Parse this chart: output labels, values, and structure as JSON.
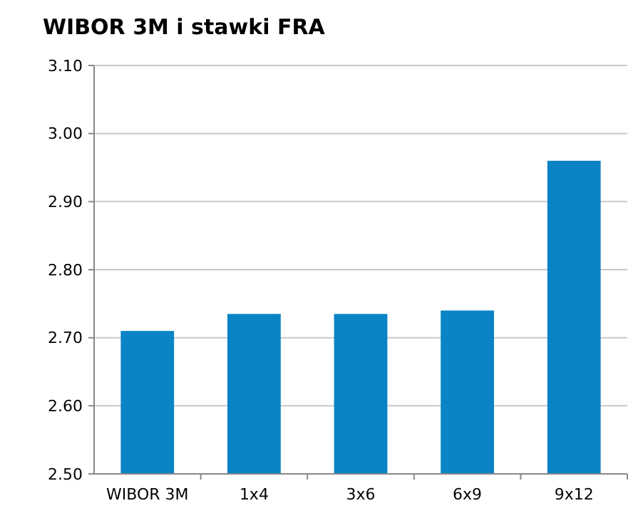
{
  "chart_data": {
    "type": "bar",
    "title": "WIBOR 3M i stawki FRA",
    "categories": [
      "WIBOR 3M",
      "1x4",
      "3x6",
      "6x9",
      "9x12"
    ],
    "values": [
      2.71,
      2.735,
      2.735,
      2.74,
      2.96
    ],
    "color": "#0a84c6",
    "ylim": [
      2.5,
      3.1
    ],
    "yticks": [
      {
        "value": 2.5,
        "label": "2.50"
      },
      {
        "value": 2.6,
        "label": "2.60"
      },
      {
        "value": 2.7,
        "label": "2.70"
      },
      {
        "value": 2.8,
        "label": "2.80"
      },
      {
        "value": 2.9,
        "label": "2.90"
      },
      {
        "value": 3.0,
        "label": "3.00"
      },
      {
        "value": 3.1,
        "label": "3.10"
      }
    ],
    "grid": "y"
  }
}
